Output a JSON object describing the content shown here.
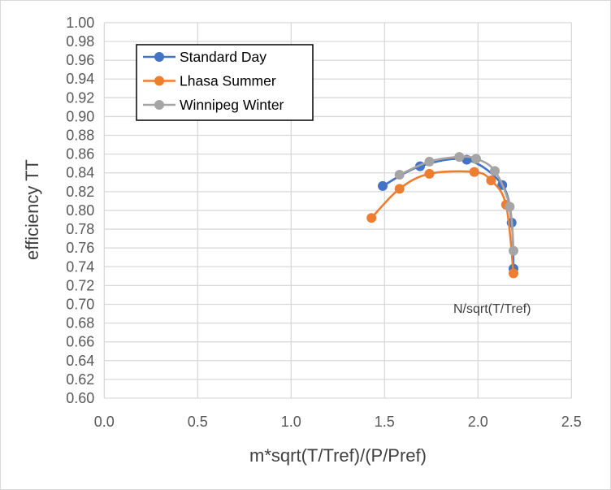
{
  "chart_data": {
    "type": "scatter",
    "xlabel": "m*sqrt(T/Tref)/(P/Pref)",
    "ylabel": "efficiency TT",
    "xlim": [
      0.0,
      2.5
    ],
    "ylim": [
      0.6,
      1.0
    ],
    "x_ticks": [
      "0.0",
      "0.5",
      "1.0",
      "1.5",
      "2.0",
      "2.5"
    ],
    "y_ticks": [
      "0.60",
      "0.62",
      "0.64",
      "0.66",
      "0.68",
      "0.70",
      "0.72",
      "0.74",
      "0.76",
      "0.78",
      "0.80",
      "0.82",
      "0.84",
      "0.86",
      "0.88",
      "0.90",
      "0.92",
      "0.94",
      "0.96",
      "0.98",
      "1.00"
    ],
    "grid": true,
    "smooth_lines": true,
    "legend_position": "top-left",
    "annotation": "N/sqrt(T/Tref)",
    "series": [
      {
        "name": "Standard Day",
        "color": "#4472c4",
        "x": [
          1.49,
          1.69,
          1.94,
          2.13,
          2.18,
          2.19
        ],
        "y": [
          0.826,
          0.847,
          0.854,
          0.827,
          0.787,
          0.738
        ]
      },
      {
        "name": "Lhasa Summer",
        "color": "#ed7d31",
        "x": [
          1.43,
          1.58,
          1.74,
          1.98,
          2.07,
          2.15,
          2.19
        ],
        "y": [
          0.792,
          0.823,
          0.839,
          0.841,
          0.832,
          0.806,
          0.733
        ]
      },
      {
        "name": "Winnipeg Winter",
        "color": "#a5a5a5",
        "x": [
          1.58,
          1.74,
          1.9,
          1.99,
          2.09,
          2.17,
          2.19
        ],
        "y": [
          0.838,
          0.852,
          0.857,
          0.855,
          0.842,
          0.804,
          0.757
        ]
      }
    ]
  }
}
